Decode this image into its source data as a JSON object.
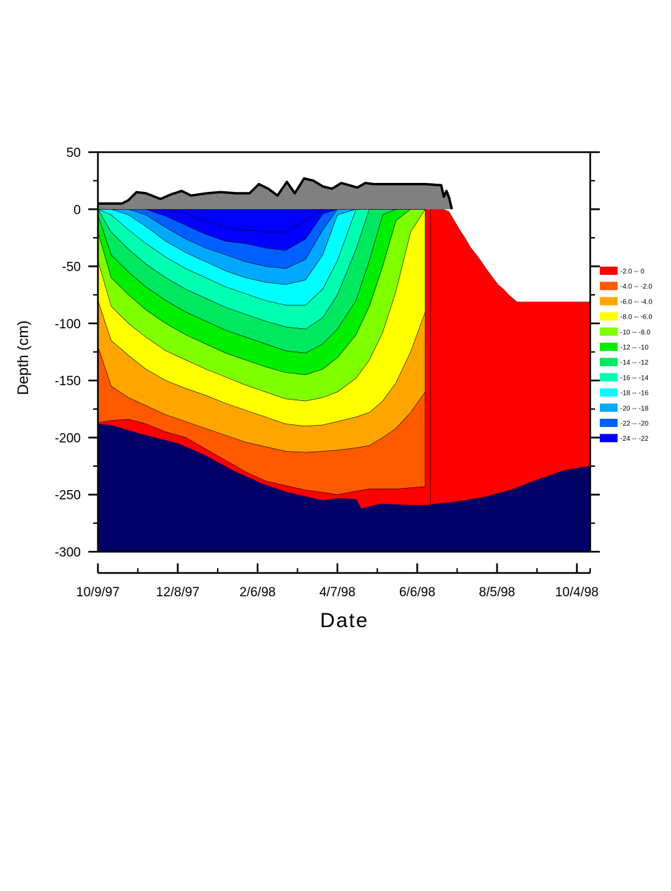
{
  "chart_data": {
    "type": "area",
    "title": "",
    "xlabel": "Date",
    "ylabel": "Depth (cm)",
    "ylim": [
      -300,
      50
    ],
    "yticks": [
      50,
      0,
      -50,
      -100,
      -150,
      -200,
      -250,
      -300
    ],
    "xlim": [
      "1997-10-09",
      "1998-10-14"
    ],
    "xticks": [
      {
        "date": "1997-10-09",
        "label": "10/9/97"
      },
      {
        "date": "1997-12-08",
        "label": "12/8/97"
      },
      {
        "date": "1998-02-06",
        "label": "2/6/98"
      },
      {
        "date": "1998-04-07",
        "label": "4/7/98"
      },
      {
        "date": "1998-06-06",
        "label": "6/6/98"
      },
      {
        "date": "1998-08-05",
        "label": "8/5/98"
      },
      {
        "date": "1998-10-04",
        "label": "10/4/98"
      }
    ],
    "legend_position": "right",
    "legend": [
      {
        "label": "-2.0  --  0",
        "color": "#ff0000"
      },
      {
        "label": "-4.0  --  -2.0",
        "color": "#ff5a00"
      },
      {
        "label": "-6.0  --  -4.0",
        "color": "#ffa500"
      },
      {
        "label": "-8.0  --  -6.0",
        "color": "#ffff00"
      },
      {
        "label": "-10  --  -8.0",
        "color": "#80ff00"
      },
      {
        "label": "-12  --  -10",
        "color": "#00ee00"
      },
      {
        "label": "-14  --  -12",
        "color": "#00e860"
      },
      {
        "label": "-16  --  -14",
        "color": "#00ffb0"
      },
      {
        "label": "-18  --  -16",
        "color": "#00ffff"
      },
      {
        "label": "-20  --  -18",
        "color": "#00a8ff"
      },
      {
        "label": "-22  --  -20",
        "color": "#0060ff"
      },
      {
        "label": "-24  --  -22",
        "color": "#0000ff"
      }
    ],
    "snow_color": "#808080",
    "below_color": "#000066",
    "snow_surface": {
      "x": [
        "1997-10-09",
        "1997-10-18",
        "1997-10-27",
        "1997-11-01",
        "1997-11-07",
        "1997-11-14",
        "1997-11-25",
        "1997-12-03",
        "1997-12-11",
        "1997-12-18",
        "1997-12-30",
        "1998-01-09",
        "1998-01-21",
        "1998-01-31",
        "1998-02-07",
        "1998-02-14",
        "1998-02-21",
        "1998-02-28",
        "1998-03-06",
        "1998-03-13",
        "1998-03-20",
        "1998-03-27",
        "1998-04-03",
        "1998-04-10",
        "1998-04-16",
        "1998-04-22",
        "1998-04-28",
        "1998-05-04",
        "1998-05-10",
        "1998-05-18",
        "1998-06-01",
        "1998-06-12",
        "1998-06-24",
        "1998-06-26",
        "1998-06-28",
        "1998-06-30",
        "1998-07-02"
      ],
      "y": [
        5,
        5,
        5,
        8,
        15,
        14,
        9,
        13,
        16,
        12,
        14,
        15,
        14,
        14,
        22,
        18,
        12,
        24,
        14,
        27,
        25,
        20,
        18,
        23,
        21,
        19,
        23,
        22,
        22,
        22,
        22,
        22,
        21,
        11,
        16,
        10,
        0
      ]
    },
    "bottom_boundary": {
      "x": [
        "1997-10-09",
        "1997-10-19",
        "1997-11-08",
        "1997-12-08",
        "1997-12-28",
        "1998-01-19",
        "1998-02-09",
        "1998-03-01",
        "1998-03-27",
        "1998-04-07",
        "1998-04-21",
        "1998-04-25",
        "1998-05-09",
        "1998-06-01",
        "1998-06-14",
        "1998-07-07",
        "1998-07-27",
        "1998-08-15",
        "1998-09-04",
        "1998-09-24",
        "1998-10-14"
      ],
      "y": [
        -188,
        -189,
        -196,
        -205,
        -215,
        -229,
        -240,
        -248,
        -255,
        -253,
        -254,
        -262,
        -258,
        -259,
        -259,
        -256,
        -252,
        -246,
        -237,
        -229,
        -225
      ]
    },
    "red_front": {
      "x": [
        "1998-06-16",
        "1998-06-26",
        "1998-06-30",
        "1998-07-04",
        "1998-07-08",
        "1998-07-12",
        "1998-07-16",
        "1998-07-22",
        "1998-07-28",
        "1998-08-02",
        "1998-08-06",
        "1998-08-10",
        "1998-08-14",
        "1998-08-20",
        "1998-10-14"
      ],
      "y": [
        0,
        0,
        -2,
        -10,
        -18,
        -25,
        -33,
        -42,
        -52,
        -60,
        -66,
        -70,
        -75,
        -81,
        -81
      ]
    },
    "contour_fronts": {
      "x": [
        "1997-10-09",
        "1997-10-19",
        "1997-11-01",
        "1997-11-14",
        "1997-11-29",
        "1997-12-14",
        "1997-12-29",
        "1998-01-13",
        "1998-01-28",
        "1998-02-12",
        "1998-02-27",
        "1998-03-14",
        "1998-03-27",
        "1998-04-07",
        "1998-04-21",
        "1998-05-01",
        "1998-05-11",
        "1998-05-21",
        "1998-06-01",
        "1998-06-12"
      ],
      "levels": [
        {
          "level": -2,
          "y": [
            -187,
            -185,
            -184,
            -188,
            -195,
            -200,
            -210,
            -220,
            -230,
            -238,
            -242,
            -246,
            -248,
            -250,
            -247,
            -245,
            -245,
            -245,
            -244,
            -243
          ]
        },
        {
          "level": -4,
          "y": [
            -120,
            -155,
            -165,
            -172,
            -180,
            -186,
            -192,
            -198,
            -204,
            -208,
            -212,
            -213,
            -212,
            -211,
            -209,
            -207,
            -200,
            -192,
            -178,
            -160
          ]
        },
        {
          "level": -6,
          "y": [
            -80,
            -115,
            -128,
            -140,
            -150,
            -157,
            -163,
            -170,
            -176,
            -182,
            -188,
            -190,
            -189,
            -186,
            -182,
            -178,
            -168,
            -152,
            -125,
            -90
          ]
        },
        {
          "level": -8,
          "y": [
            -45,
            -85,
            -100,
            -112,
            -124,
            -132,
            -140,
            -147,
            -154,
            -160,
            -166,
            -168,
            -165,
            -160,
            -148,
            -132,
            -108,
            -72,
            -20,
            0
          ]
        },
        {
          "level": -10,
          "y": [
            -20,
            -60,
            -75,
            -88,
            -100,
            -110,
            -118,
            -126,
            -132,
            -138,
            -143,
            -145,
            -140,
            -130,
            -110,
            -85,
            -50,
            -10,
            0,
            0
          ]
        },
        {
          "level": -12,
          "y": [
            -5,
            -40,
            -55,
            -68,
            -80,
            -90,
            -98,
            -106,
            -112,
            -118,
            -124,
            -126,
            -118,
            -105,
            -80,
            -45,
            -5,
            0,
            0,
            0
          ]
        },
        {
          "level": -14,
          "y": [
            0,
            -20,
            -35,
            -48,
            -60,
            -70,
            -78,
            -86,
            -92,
            -98,
            -103,
            -105,
            -95,
            -75,
            -35,
            0,
            0,
            0,
            0,
            0
          ]
        },
        {
          "level": -16,
          "y": [
            0,
            -5,
            -18,
            -30,
            -42,
            -52,
            -60,
            -68,
            -74,
            -80,
            -84,
            -84,
            -70,
            -45,
            0,
            0,
            0,
            0,
            0,
            0
          ]
        },
        {
          "level": -18,
          "y": [
            0,
            0,
            -5,
            -15,
            -28,
            -38,
            -46,
            -54,
            -60,
            -64,
            -66,
            -62,
            -40,
            -5,
            0,
            0,
            0,
            0,
            0,
            0
          ]
        },
        {
          "level": -20,
          "y": [
            0,
            0,
            0,
            -5,
            -16,
            -26,
            -34,
            -40,
            -46,
            -50,
            -52,
            -44,
            -18,
            0,
            0,
            0,
            0,
            0,
            0,
            0
          ]
        },
        {
          "level": -22,
          "y": [
            0,
            0,
            0,
            0,
            -6,
            -14,
            -22,
            -28,
            -30,
            -34,
            -36,
            -26,
            -4,
            0,
            0,
            0,
            0,
            0,
            0,
            0
          ]
        },
        {
          "level": -24,
          "y": [
            0,
            0,
            0,
            0,
            0,
            -4,
            -10,
            -16,
            -18,
            -20,
            -20,
            -10,
            0,
            0,
            0,
            0,
            0,
            0,
            0,
            0
          ]
        }
      ]
    }
  }
}
